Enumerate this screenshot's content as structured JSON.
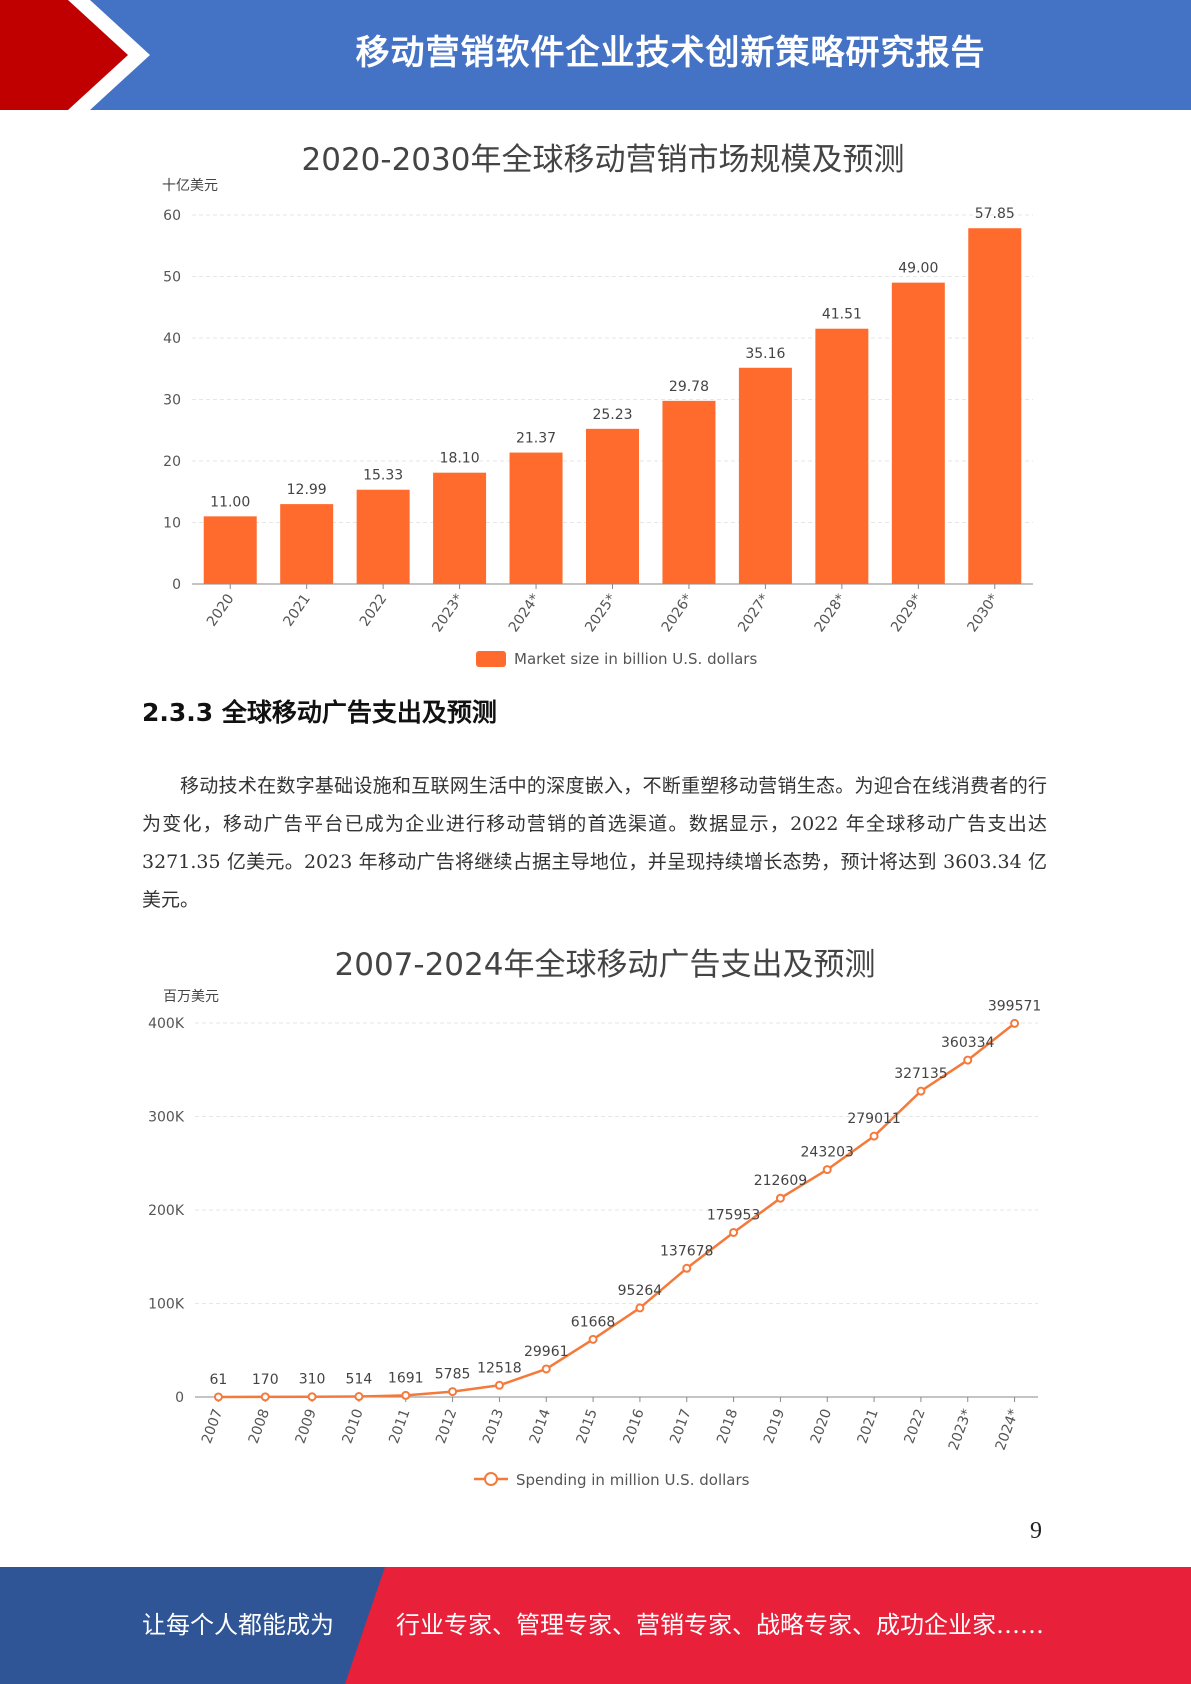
{
  "header": {
    "title": "移动营销软件企业技术创新策略研究报告",
    "accent_color": "#c00000",
    "band_color": "#4472c4"
  },
  "section": {
    "heading": "2.3.3 全球移动广告支出及预测"
  },
  "paragraph": "移动技术在数字基础设施和互联网生活中的深度嵌入，不断重塑移动营销生态。为迎合在线消费者的行为变化，移动广告平台已成为企业进行移动营销的首选渠道。数据显示，2022 年全球移动广告支出达 3271.35 亿美元。2023 年移动广告将继续占据主导地位，并呈现持续增长态势，预计将达到 3603.34 亿美元。",
  "page_number": "9",
  "footer": {
    "left_text": "让每个人都能成为",
    "right_text": "行业专家、管理专家、营销专家、战略专家、成功企业家……",
    "left_color": "#2f5597",
    "right_color": "#e8203a"
  },
  "chart_data": [
    {
      "type": "bar",
      "title": "2020-2030年全球移动营销市场规模及预测",
      "ylabel": "十亿美元",
      "xlabel": "",
      "categories": [
        "2020",
        "2021",
        "2022",
        "2023*",
        "2024*",
        "2025*",
        "2026*",
        "2027*",
        "2028*",
        "2029*",
        "2030*"
      ],
      "series": [
        {
          "name": "Market size in billion U.S. dollars",
          "values": [
            11.0,
            12.99,
            15.33,
            18.1,
            21.37,
            25.23,
            29.78,
            35.16,
            41.51,
            49.0,
            57.85
          ],
          "labels": [
            "11.00",
            "12.99",
            "15.33",
            "18.10",
            "21.37",
            "25.23",
            "29.78",
            "35.16",
            "41.51",
            "49.00",
            "57.85"
          ]
        }
      ],
      "ylim": [
        0,
        60
      ],
      "yticks": [
        0,
        10,
        20,
        30,
        40,
        50,
        60
      ],
      "ytick_labels": [
        "0",
        "10",
        "20",
        "30",
        "40",
        "50",
        "60"
      ],
      "grid": true,
      "legend": "bottom",
      "color": "#ff6b2c"
    },
    {
      "type": "line",
      "title": "2007-2024年全球移动广告支出及预测",
      "ylabel": "百万美元",
      "xlabel": "",
      "categories": [
        "2007",
        "2008",
        "2009",
        "2010",
        "2011",
        "2012",
        "2013",
        "2014",
        "2015",
        "2016",
        "2017",
        "2018",
        "2019",
        "2020",
        "2021",
        "2022",
        "2023*",
        "2024*"
      ],
      "series": [
        {
          "name": "Spending in million U.S. dollars",
          "values": [
            61,
            170,
            310,
            514,
            1691,
            5785,
            12518,
            29961,
            61668,
            95264,
            137678,
            175953,
            212609,
            243203,
            279011,
            327135,
            360334,
            399571
          ],
          "labels": [
            "61",
            "170",
            "310",
            "514",
            "1691",
            "5785",
            "12518",
            "29961",
            "61668",
            "95264",
            "137678",
            "175953",
            "212609",
            "243203",
            "279011",
            "327135",
            "360334",
            "399571"
          ]
        }
      ],
      "ylim": [
        0,
        400000
      ],
      "yticks": [
        0,
        100000,
        200000,
        300000,
        400000
      ],
      "ytick_labels": [
        "0",
        "100K",
        "200K",
        "300K",
        "400K"
      ],
      "grid": true,
      "legend": "bottom",
      "color": "#f47a3c"
    }
  ]
}
